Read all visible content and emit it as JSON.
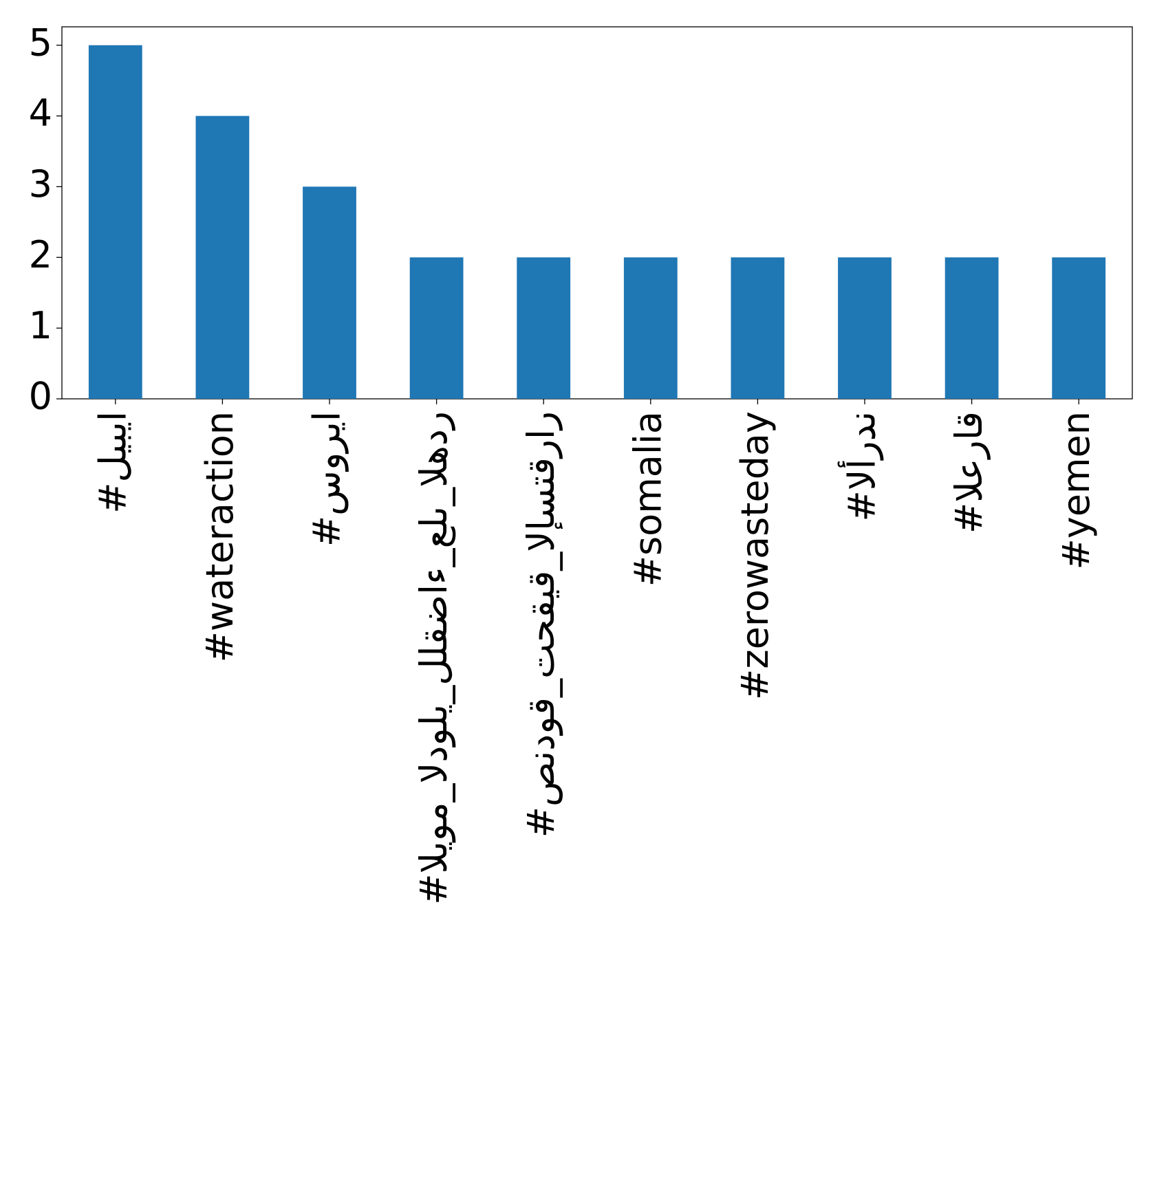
{
  "chart_data": {
    "type": "bar",
    "categories": [
      "#ليبيا",
      "#wateraction",
      "#سوريا",
      "#اليوم_الدولي_للقضاء_على_الهدر",
      "#صندوق_تحقيق_الإستقرار",
      "#somalia",
      "#zerowasteday",
      "#الأردن",
      "#العراق",
      "#yemen"
    ],
    "values": [
      5,
      4,
      3,
      2,
      2,
      2,
      2,
      2,
      2,
      2
    ],
    "color": "#1f77b4",
    "ylim": [
      0,
      5.26
    ],
    "yticks": [
      0,
      1,
      2,
      3,
      4,
      5
    ],
    "grid": false
  }
}
